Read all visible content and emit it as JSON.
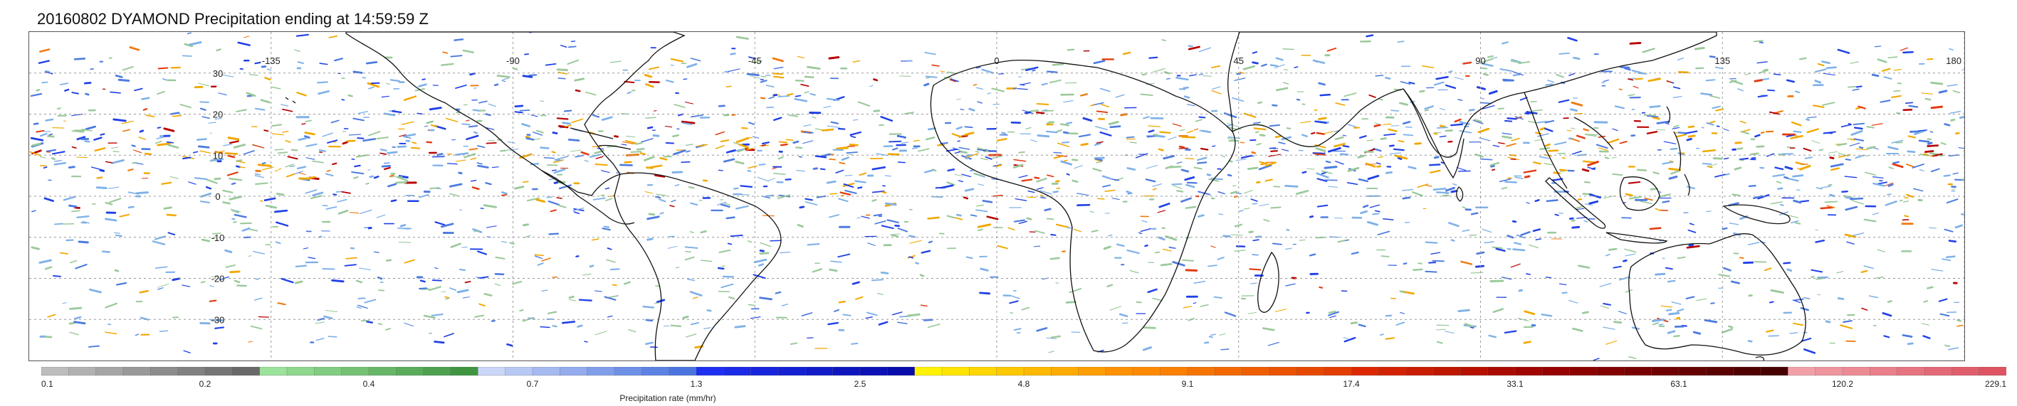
{
  "title": "20160802 DYAMOND Precipitation ending at 14:59:59 Z",
  "map": {
    "lon_range": [
      -180,
      180
    ],
    "lat_range": [
      -40,
      40
    ],
    "lon_tick_values": [
      -135,
      -90,
      -45,
      0,
      45,
      90,
      135,
      180
    ],
    "lon_tick_labels": [
      "-135",
      "-90",
      "-45",
      "0",
      "45",
      "90",
      "135",
      "180"
    ],
    "lat_tick_values": [
      30,
      20,
      10,
      0,
      -10,
      -20,
      -30
    ],
    "lat_tick_labels": [
      "30",
      "20",
      "10",
      "0",
      "-10",
      "-20",
      "-30"
    ],
    "gridlines": true,
    "coastline_color": "#000000"
  },
  "colorbar": {
    "label": "Precipitation rate (mm/hr)",
    "tick_labels": [
      "0.1",
      "0.2",
      "0.4",
      "0.7",
      "1.3",
      "2.5",
      "4.8",
      "9.1",
      "17.4",
      "33.1",
      "63.1",
      "120.2",
      "229.1"
    ],
    "colors": [
      "#bdbdbd",
      "#b1b1b1",
      "#a5a5a5",
      "#999999",
      "#8d8d8d",
      "#818181",
      "#757575",
      "#696969",
      "#9be29b",
      "#8ed78e",
      "#81cc81",
      "#74c174",
      "#67b667",
      "#5aab5a",
      "#4da04d",
      "#409540",
      "#c9d6f7",
      "#b7c8f4",
      "#a5baf1",
      "#93acee",
      "#819eea",
      "#6f90e7",
      "#5d82e4",
      "#4b74e0",
      "#1d2ff0",
      "#1a2ae6",
      "#1725dc",
      "#1420d2",
      "#111bc8",
      "#0e16be",
      "#0b11b4",
      "#080caa",
      "#fff200",
      "#ffe400",
      "#ffd600",
      "#ffc800",
      "#ffba00",
      "#ffac00",
      "#ff9e00",
      "#ff9000",
      "#ff8a00",
      "#fb7f00",
      "#f77400",
      "#f36900",
      "#ef5e00",
      "#eb5300",
      "#e74800",
      "#e33d00",
      "#dd2800",
      "#d32200",
      "#c91c00",
      "#bf1600",
      "#b51000",
      "#ab0a00",
      "#a10500",
      "#970000",
      "#8d0000",
      "#830000",
      "#790000",
      "#6f0000",
      "#650000",
      "#5b0000",
      "#510000",
      "#470000",
      "#f2a0a8",
      "#ef959e",
      "#ec8a94",
      "#e97f8a",
      "#e67480",
      "#e36976",
      "#e05e6c",
      "#dd5362"
    ]
  },
  "precip_palette": [
    "#9bc99b",
    "#7fb1e8",
    "#4d7be0",
    "#2040e6",
    "#f2a800",
    "#f07a10",
    "#e23a10",
    "#b80000"
  ]
}
